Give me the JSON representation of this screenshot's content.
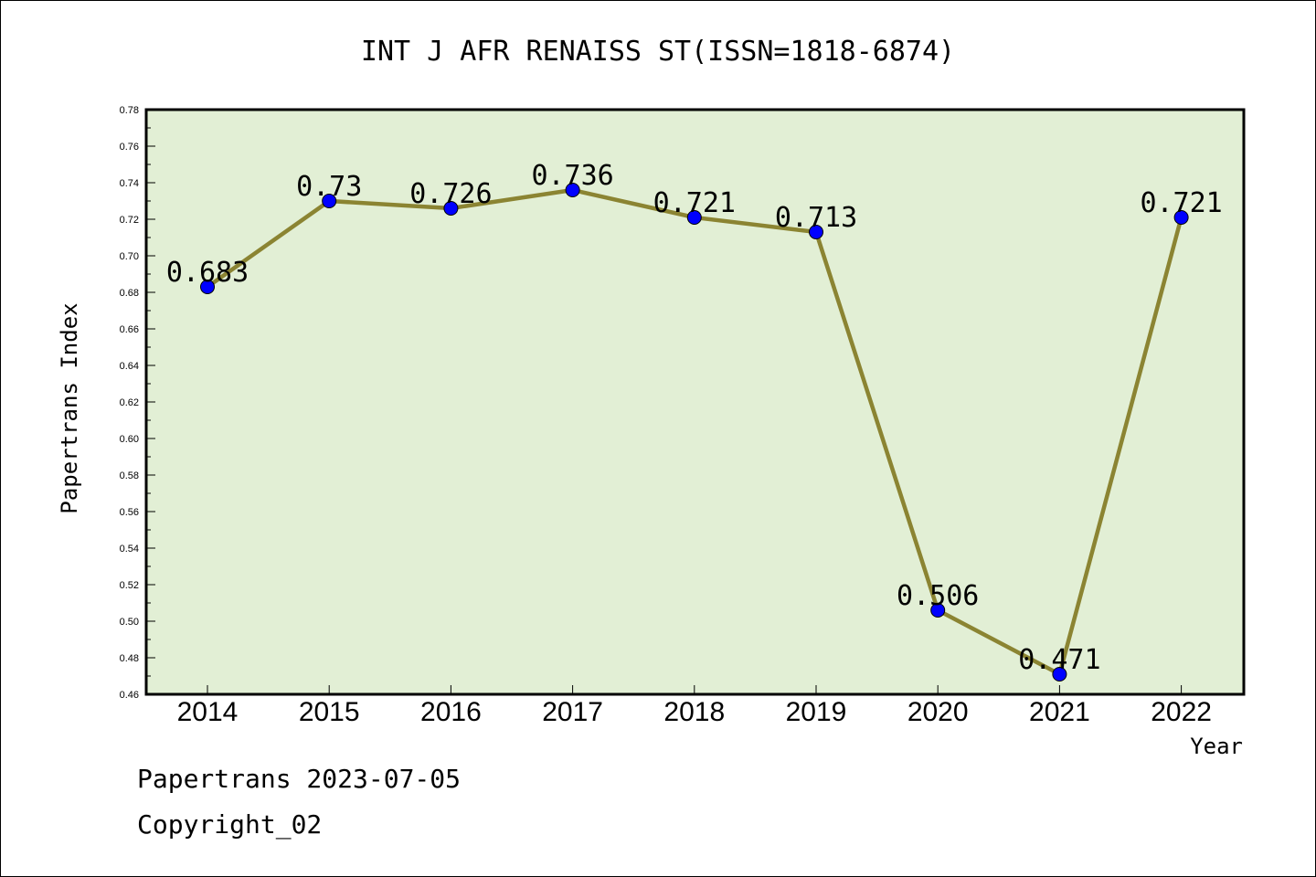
{
  "chart_data": {
    "type": "line",
    "title": "INT J AFR RENAISS ST(ISSN=1818-6874)",
    "xlabel": "Year",
    "ylabel": "Papertrans Index",
    "categories": [
      "2014",
      "2015",
      "2016",
      "2017",
      "2018",
      "2019",
      "2020",
      "2021",
      "2022"
    ],
    "series": [
      {
        "values": [
          0.683,
          0.73,
          0.726,
          0.736,
          0.721,
          0.713,
          0.506,
          0.471,
          0.721
        ],
        "labels": [
          "0.683",
          "0.73",
          "0.726",
          "0.736",
          "0.721",
          "0.713",
          "0.506",
          "0.471",
          "0.721"
        ]
      }
    ],
    "ylim": [
      0.46,
      0.78
    ],
    "yticks": [
      "0.46",
      "0.48",
      "0.50",
      "0.52",
      "0.54",
      "0.56",
      "0.58",
      "0.60",
      "0.62",
      "0.64",
      "0.66",
      "0.68",
      "0.70",
      "0.72",
      "0.74",
      "0.76",
      "0.78"
    ],
    "grid": false,
    "colors": {
      "plot_background": "#e2efd5",
      "line": "#8b8432",
      "marker": "#0000ff"
    }
  },
  "footer": {
    "date_line": "Papertrans 2023-07-05",
    "copyright_line": "Copyright_02"
  }
}
